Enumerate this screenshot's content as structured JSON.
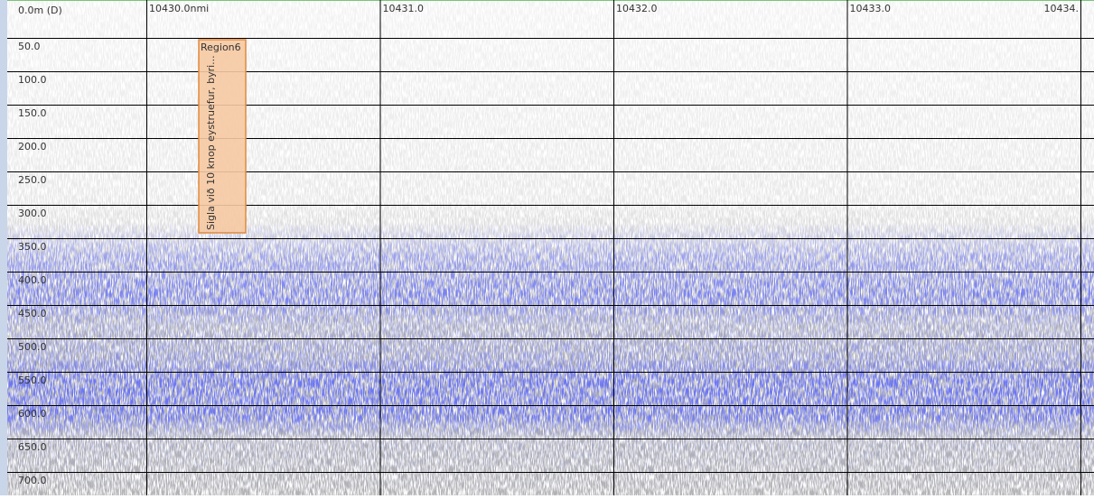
{
  "echogram": {
    "depth_labels": [
      "0.0m (D)",
      "50.0",
      "100.0",
      "150.0",
      "200.0",
      "250.0",
      "300.0",
      "350.0",
      "400.0",
      "450.0",
      "500.0",
      "550.0",
      "600.0",
      "650.0",
      "700.0"
    ],
    "distance_labels": [
      "10430.0nmi",
      "10431.0",
      "10432.0",
      "10433.0",
      "10434."
    ],
    "region": {
      "name": "Region6",
      "note": "Sigla við 10 knop eystruefur, byri..."
    }
  }
}
